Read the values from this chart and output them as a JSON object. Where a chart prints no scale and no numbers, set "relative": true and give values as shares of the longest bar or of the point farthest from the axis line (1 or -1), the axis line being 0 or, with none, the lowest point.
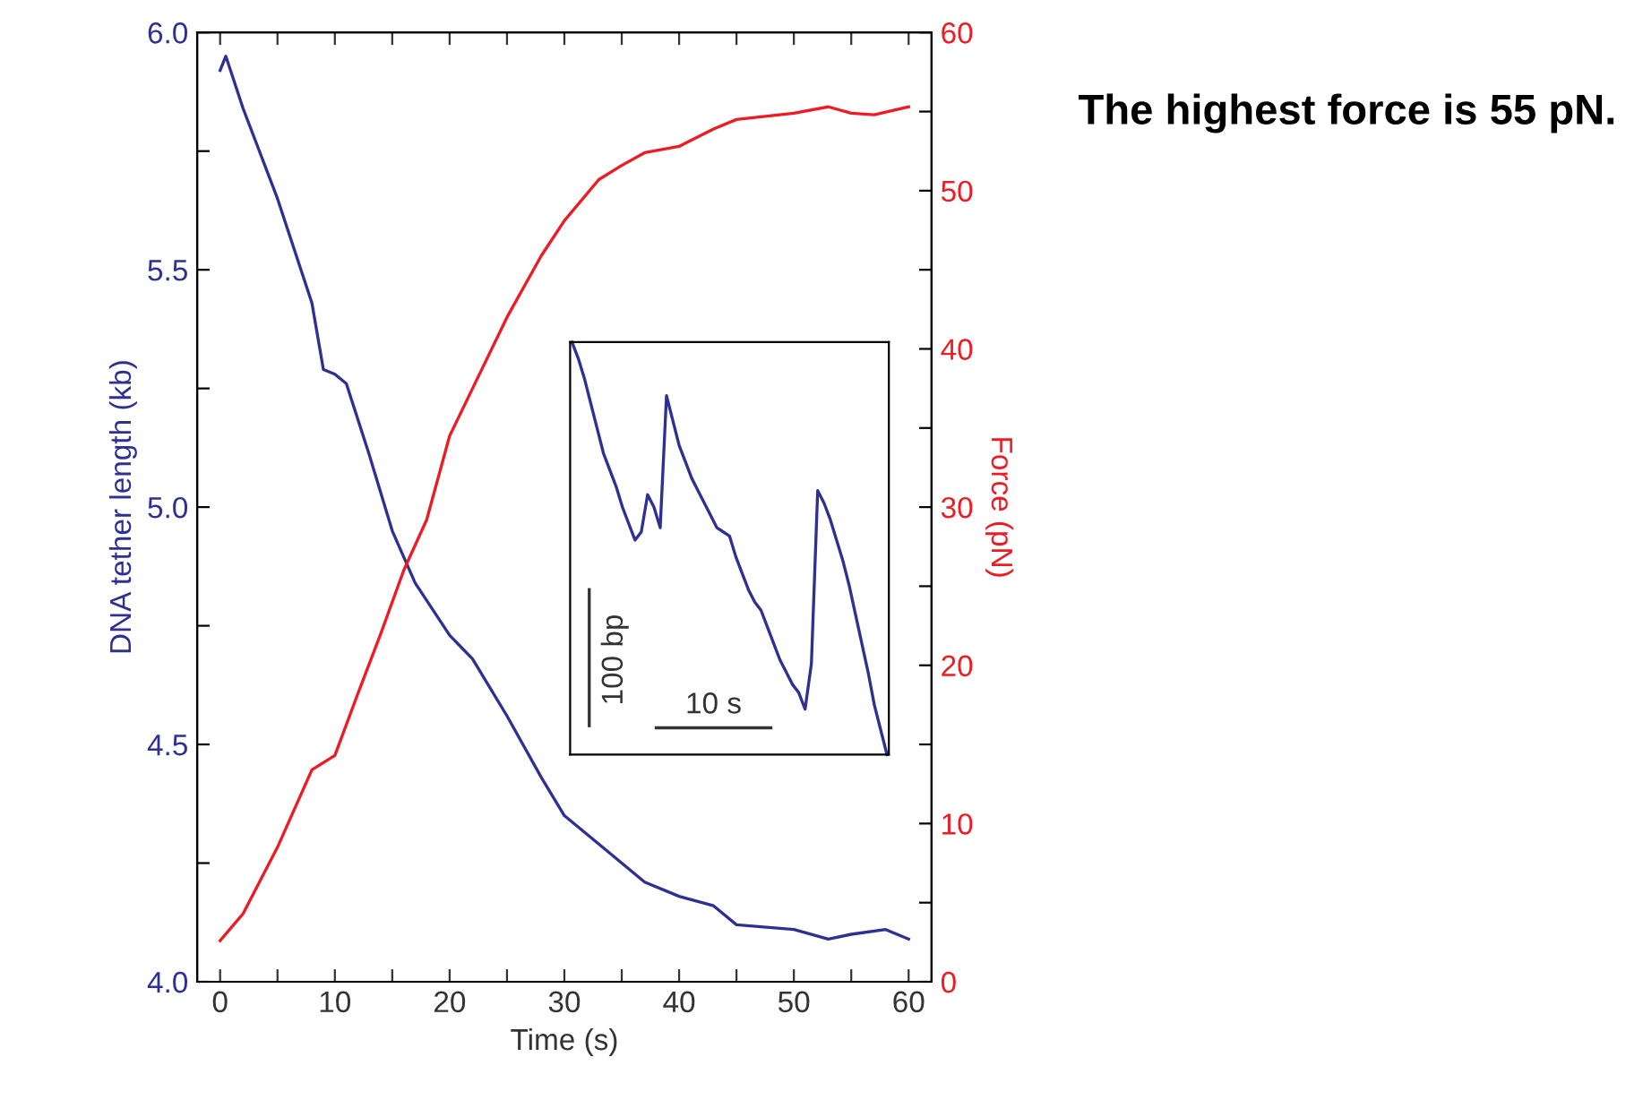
{
  "chart_data": [
    {
      "type": "line",
      "xlabel": "Time (s)",
      "ylabel": "DNA tether length (kb)",
      "y2label": "Force (pN)",
      "xlim": [
        -2,
        62
      ],
      "xticks": [
        0,
        {
          "value": 5,
          "label": null
        },
        10,
        {
          "value": 15,
          "label": null
        },
        20,
        {
          "value": 25,
          "label": null
        },
        30,
        {
          "value": 35,
          "label": null
        },
        40,
        {
          "value": 45,
          "label": null
        },
        50,
        {
          "value": 55,
          "label": null
        },
        60
      ],
      "ylim": [
        4,
        6
      ],
      "yticks": [
        {
          "value": 4,
          "label": "4.0"
        },
        {
          "value": 4.25,
          "label": null
        },
        {
          "value": 4.5,
          "label": "4.5"
        },
        {
          "value": 4.75,
          "label": null
        },
        {
          "value": 5,
          "label": "5.0"
        },
        {
          "value": 5.25,
          "label": null
        },
        {
          "value": 5.5,
          "label": "5.5"
        },
        {
          "value": 5.75,
          "label": null
        },
        {
          "value": 6,
          "label": "6.0"
        }
      ],
      "y2lim": [
        0,
        60
      ],
      "y2ticks": [
        0,
        {
          "value": 5,
          "label": null
        },
        10,
        {
          "value": 15,
          "label": null
        },
        20,
        {
          "value": 25,
          "label": null
        },
        30,
        {
          "value": 35,
          "label": null
        },
        40,
        {
          "value": 45,
          "label": null
        },
        50,
        {
          "value": 55,
          "label": null
        },
        60
      ],
      "grid": false,
      "series": [
        {
          "color": "#2e3192",
          "x": [
            0,
            0.5,
            2,
            5,
            8,
            9,
            10,
            11,
            13,
            15,
            17,
            20,
            22,
            25,
            28,
            30,
            33,
            35,
            37,
            40,
            43,
            45,
            50,
            53,
            55,
            58,
            60
          ],
          "values": [
            5.92,
            5.95,
            5.84,
            5.65,
            5.43,
            5.29,
            5.28,
            5.26,
            5.11,
            4.95,
            4.84,
            4.73,
            4.68,
            4.56,
            4.43,
            4.35,
            4.29,
            4.25,
            4.21,
            4.18,
            4.16,
            4.12,
            4.11,
            4.09,
            4.1,
            4.11,
            4.09
          ]
        },
        {
          "color": "#ed1c24",
          "axis": "y2",
          "x": [
            0,
            2,
            5,
            8,
            10,
            12,
            14,
            16,
            18,
            20,
            22,
            25,
            28,
            30,
            33,
            35,
            37,
            40,
            43,
            45,
            50,
            53,
            55,
            57,
            60
          ],
          "values": [
            2.6,
            4.3,
            8.5,
            13.4,
            14.3,
            18.2,
            22,
            26,
            29.2,
            34.5,
            37.5,
            42,
            45.9,
            48.1,
            50.7,
            51.6,
            52.4,
            52.8,
            53.9,
            54.5,
            54.9,
            55.3,
            54.9,
            54.8,
            55.3
          ]
        }
      ],
      "annotations": [
        "The highest force is 55 pN."
      ]
    },
    {
      "type": "line",
      "relative": true,
      "tick_labels": false,
      "categories": [
        null,
        null,
        null,
        null,
        null,
        null,
        null,
        null,
        null,
        null,
        null,
        null,
        null,
        null,
        null,
        null,
        null,
        null,
        null,
        null,
        null,
        null,
        null,
        null,
        null,
        null,
        null,
        null,
        null,
        null,
        null,
        null,
        null,
        null,
        null,
        null,
        null,
        null,
        null,
        null,
        null,
        null,
        null,
        null,
        null,
        null,
        null,
        null,
        null,
        null,
        null
      ],
      "series": [
        {
          "color": "#2e3192",
          "values": [
            1.0,
            0.96,
            0.91,
            0.85,
            0.79,
            0.73,
            0.69,
            0.65,
            0.6,
            0.56,
            0.52,
            0.54,
            0.63,
            0.6,
            0.55,
            0.87,
            0.81,
            0.75,
            0.71,
            0.67,
            0.64,
            0.61,
            0.58,
            0.55,
            0.54,
            0.53,
            0.48,
            0.44,
            0.4,
            0.37,
            0.35,
            0.31,
            0.27,
            0.23,
            0.2,
            0.17,
            0.15,
            0.11,
            0.22,
            0.64,
            0.61,
            0.57,
            0.52,
            0.47,
            0.41,
            0.34,
            0.27,
            0.2,
            0.12,
            0.06,
            0.0
          ]
        }
      ],
      "annotations": [
        "100 bp",
        "10 s"
      ]
    }
  ]
}
